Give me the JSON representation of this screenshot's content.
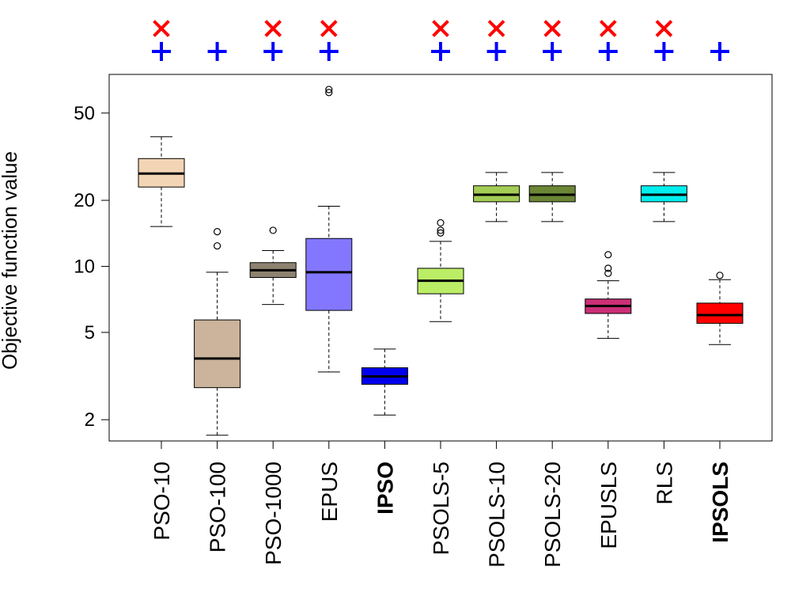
{
  "chart_data": {
    "type": "boxplot",
    "ylabel": "Objective function value",
    "yscale": "log",
    "ylim": [
      1.6,
      75
    ],
    "yticks": [
      {
        "value": 2,
        "label": "2"
      },
      {
        "value": 5,
        "label": "5"
      },
      {
        "value": 10,
        "label": "10"
      },
      {
        "value": 20,
        "label": "20"
      },
      {
        "value": 50,
        "label": "50"
      }
    ],
    "categories": [
      {
        "label": "PSO-10",
        "bold": false,
        "color": "#f2d5b5",
        "whisker_low": 15.2,
        "q1": 23.0,
        "median": 26.5,
        "q3": 31.0,
        "whisker_high": 39.0,
        "outliers": [],
        "x_marker": true,
        "plus_marker": true
      },
      {
        "label": "PSO-100",
        "bold": false,
        "color": "#cbb49b",
        "whisker_low": 1.7,
        "q1": 2.8,
        "median": 3.8,
        "q3": 5.7,
        "whisker_high": 9.4,
        "outliers": [
          12.4,
          14.4
        ],
        "x_marker": false,
        "plus_marker": true
      },
      {
        "label": "PSO-1000",
        "bold": false,
        "color": "#8e8270",
        "whisker_low": 6.7,
        "q1": 8.9,
        "median": 9.6,
        "q3": 10.4,
        "whisker_high": 11.8,
        "outliers": [
          14.6
        ],
        "x_marker": true,
        "plus_marker": true
      },
      {
        "label": "EPUS",
        "bold": false,
        "color": "#8377ff",
        "whisker_low": 3.3,
        "q1": 6.3,
        "median": 9.4,
        "q3": 13.4,
        "whisker_high": 18.8,
        "outliers": [
          62.0,
          64.0
        ],
        "x_marker": true,
        "plus_marker": true
      },
      {
        "label": "IPSO",
        "bold": true,
        "color": "#0000ee",
        "whisker_low": 2.1,
        "q1": 2.9,
        "median": 3.15,
        "q3": 3.45,
        "whisker_high": 4.2,
        "outliers": [],
        "x_marker": false,
        "plus_marker": false
      },
      {
        "label": "PSOLS-5",
        "bold": false,
        "color": "#bbee66",
        "whisker_low": 5.6,
        "q1": 7.5,
        "median": 8.6,
        "q3": 9.8,
        "whisker_high": 13.0,
        "outliers": [
          14.2,
          14.6,
          15.8
        ],
        "x_marker": true,
        "plus_marker": true
      },
      {
        "label": "PSOLS-10",
        "bold": false,
        "color": "#a3cc55",
        "whisker_low": 16.0,
        "q1": 19.7,
        "median": 21.2,
        "q3": 23.3,
        "whisker_high": 26.8,
        "outliers": [],
        "x_marker": true,
        "plus_marker": true
      },
      {
        "label": "PSOLS-20",
        "bold": false,
        "color": "#6b8635",
        "whisker_low": 16.0,
        "q1": 19.7,
        "median": 21.2,
        "q3": 23.3,
        "whisker_high": 26.8,
        "outliers": [],
        "x_marker": true,
        "plus_marker": true
      },
      {
        "label": "EPUSLS",
        "bold": false,
        "color": "#cc2f77",
        "whisker_low": 4.7,
        "q1": 6.1,
        "median": 6.6,
        "q3": 7.1,
        "whisker_high": 8.6,
        "outliers": [
          9.3,
          9.8,
          11.3
        ],
        "x_marker": true,
        "plus_marker": true
      },
      {
        "label": "RLS",
        "bold": false,
        "color": "#00eeee",
        "whisker_low": 16.0,
        "q1": 19.7,
        "median": 21.2,
        "q3": 23.3,
        "whisker_high": 26.8,
        "outliers": [],
        "x_marker": true,
        "plus_marker": true
      },
      {
        "label": "IPSOLS",
        "bold": true,
        "color": "#ff0000",
        "whisker_low": 4.4,
        "q1": 5.5,
        "median": 6.0,
        "q3": 6.8,
        "whisker_high": 8.7,
        "outliers": [
          9.1
        ],
        "x_marker": false,
        "plus_marker": true
      }
    ]
  }
}
